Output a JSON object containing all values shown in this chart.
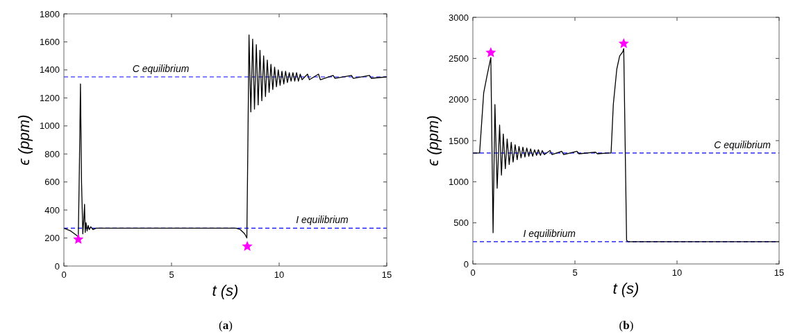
{
  "chart_data": [
    {
      "type": "line",
      "xlabel": "t (s)",
      "ylabel": "ϵ (ppm)",
      "xlim": [
        0,
        15
      ],
      "ylim": [
        0,
        1800
      ],
      "xticks": [
        0,
        5,
        10,
        15
      ],
      "yticks": [
        0,
        200,
        400,
        600,
        800,
        1000,
        1200,
        1400,
        1600,
        1800
      ],
      "grid": false,
      "series": [
        {
          "color": "#000000",
          "line_style": "solid",
          "x": [
            0,
            0.32,
            0.58,
            0.67,
            0.72,
            0.77,
            0.82,
            0.88,
            0.93,
            0.96,
            0.99,
            1.03,
            1.08,
            1.13,
            1.18,
            1.25,
            1.35,
            1.5,
            1.8,
            8.0,
            8.2,
            8.4,
            8.5,
            8.55,
            8.6,
            8.685,
            8.77,
            8.855,
            8.94,
            9.025,
            9.11,
            9.195,
            9.28,
            9.365,
            9.45,
            9.535,
            9.62,
            9.705,
            9.79,
            9.875,
            9.96,
            10.045,
            10.13,
            10.215,
            10.3,
            10.385,
            10.47,
            10.555,
            10.64,
            10.725,
            10.81,
            10.895,
            10.98,
            11.065,
            11.32,
            11.405,
            11.83,
            11.915,
            12.51,
            12.595,
            13.36,
            13.445,
            14.2,
            14.285,
            15
          ],
          "values": [
            270,
            250,
            220,
            210,
            700,
            1300,
            600,
            230,
            350,
            440,
            240,
            310,
            250,
            290,
            260,
            280,
            260,
            270,
            270,
            270,
            260,
            230,
            200,
            900,
            1650,
            1100,
            1620,
            1120,
            1580,
            1150,
            1540,
            1180,
            1500,
            1210,
            1470,
            1240,
            1440,
            1260,
            1420,
            1280,
            1400,
            1290,
            1390,
            1300,
            1390,
            1310,
            1380,
            1320,
            1380,
            1320,
            1380,
            1320,
            1370,
            1330,
            1370,
            1330,
            1370,
            1330,
            1360,
            1340,
            1360,
            1340,
            1360,
            1340,
            1350
          ]
        },
        {
          "type": "scatter",
          "color": "#ff00ff",
          "marker": "star",
          "x": [
            0.67,
            8.52
          ],
          "values": [
            190,
            140
          ]
        }
      ],
      "ref_lines": [
        {
          "axis": "y",
          "value": 1350,
          "label": "C equilibrium",
          "color": "#0000ff",
          "line_style": "dashed"
        },
        {
          "axis": "y",
          "value": 270,
          "label": "I equilibrium",
          "color": "#0000ff",
          "line_style": "dashed"
        }
      ],
      "annotations": [
        "(a)"
      ]
    },
    {
      "type": "line",
      "xlabel": "t (s)",
      "ylabel": "ϵ (ppm)",
      "xlim": [
        0,
        15
      ],
      "ylim": [
        0,
        3000
      ],
      "xticks": [
        0,
        5,
        10,
        15
      ],
      "yticks": [
        0,
        500,
        1000,
        1500,
        2000,
        2500,
        3000
      ],
      "grid": false,
      "series": [
        {
          "color": "#000000",
          "line_style": "solid",
          "x": [
            0,
            0.33,
            0.53,
            0.71,
            0.88,
            0.99,
            1.08,
            1.19,
            1.31,
            1.4,
            1.49,
            1.59,
            1.68,
            1.78,
            1.88,
            1.97,
            2.07,
            2.17,
            2.26,
            2.36,
            2.45,
            2.55,
            2.64,
            2.74,
            2.83,
            2.93,
            3.02,
            3.12,
            3.21,
            3.31,
            3.4,
            3.5,
            3.78,
            3.88,
            4.35,
            4.45,
            5.1,
            5.2,
            6.0,
            6.1,
            6.6,
            6.77,
            6.88,
            7.05,
            7.19,
            7.34,
            7.39,
            7.53,
            7.6,
            15
          ],
          "values": [
            1350,
            1350,
            2080,
            2310,
            2510,
            380,
            1940,
            920,
            1690,
            1080,
            1580,
            1160,
            1520,
            1210,
            1480,
            1240,
            1450,
            1270,
            1430,
            1290,
            1420,
            1300,
            1410,
            1310,
            1400,
            1310,
            1390,
            1320,
            1390,
            1320,
            1380,
            1330,
            1380,
            1330,
            1370,
            1330,
            1370,
            1340,
            1360,
            1340,
            1350,
            1350,
            1940,
            2370,
            2530,
            2580,
            2620,
            290,
            270,
            270
          ]
        },
        {
          "type": "scatter",
          "color": "#ff00ff",
          "marker": "star",
          "x": [
            0.88,
            7.39
          ],
          "values": [
            2570,
            2680
          ]
        }
      ],
      "ref_lines": [
        {
          "axis": "y",
          "value": 1350,
          "label": "C equilibrium",
          "color": "#0000ff",
          "line_style": "dashed"
        },
        {
          "axis": "y",
          "value": 270,
          "label": "I equilibrium",
          "color": "#0000ff",
          "line_style": "dashed"
        }
      ],
      "annotations": [
        "(b)"
      ]
    }
  ]
}
